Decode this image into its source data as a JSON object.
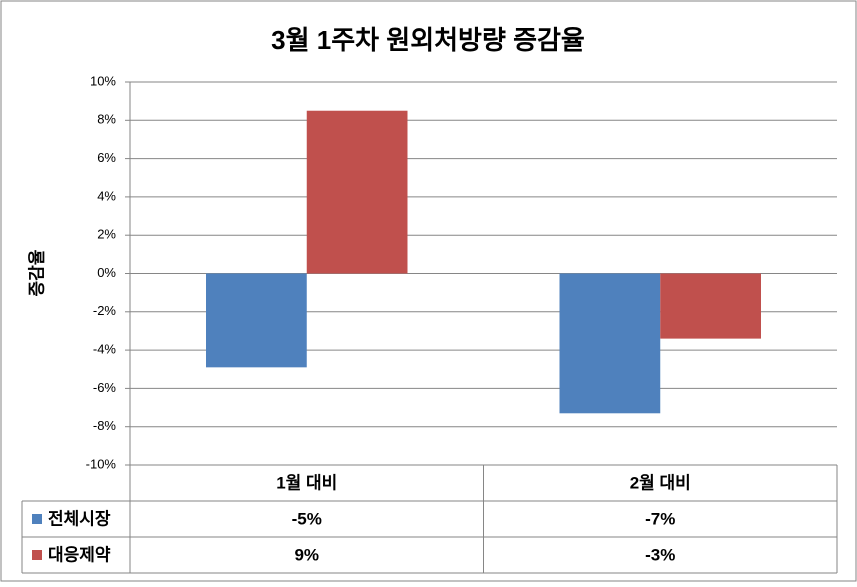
{
  "chart_data": {
    "type": "bar",
    "title": "3월 1주차 원외처방량  증감율",
    "y_label": "증감율",
    "categories": [
      "1월 대비",
      "2월 대비"
    ],
    "series": [
      {
        "name": "전체시장",
        "color": "#4f81bd",
        "values": [
          -4.9,
          -7.3
        ],
        "value_labels": [
          "-5%",
          "-7%"
        ]
      },
      {
        "name": "대응제약",
        "color": "#c0504d",
        "values": [
          8.5,
          -3.4
        ],
        "value_labels": [
          "9%",
          "-3%"
        ]
      }
    ],
    "ylim": [
      -10,
      10
    ],
    "yticks": [
      {
        "value": -10,
        "label": "-10%"
      },
      {
        "value": -8,
        "label": "-8%"
      },
      {
        "value": -6,
        "label": "-6%"
      },
      {
        "value": -4,
        "label": "-4%"
      },
      {
        "value": -2,
        "label": "-2%"
      },
      {
        "value": 0,
        "label": "0%"
      },
      {
        "value": 2,
        "label": "2%"
      },
      {
        "value": 4,
        "label": "4%"
      },
      {
        "value": 6,
        "label": "6%"
      },
      {
        "value": 8,
        "label": "8%"
      },
      {
        "value": 10,
        "label": "10%"
      }
    ],
    "grid": true
  }
}
